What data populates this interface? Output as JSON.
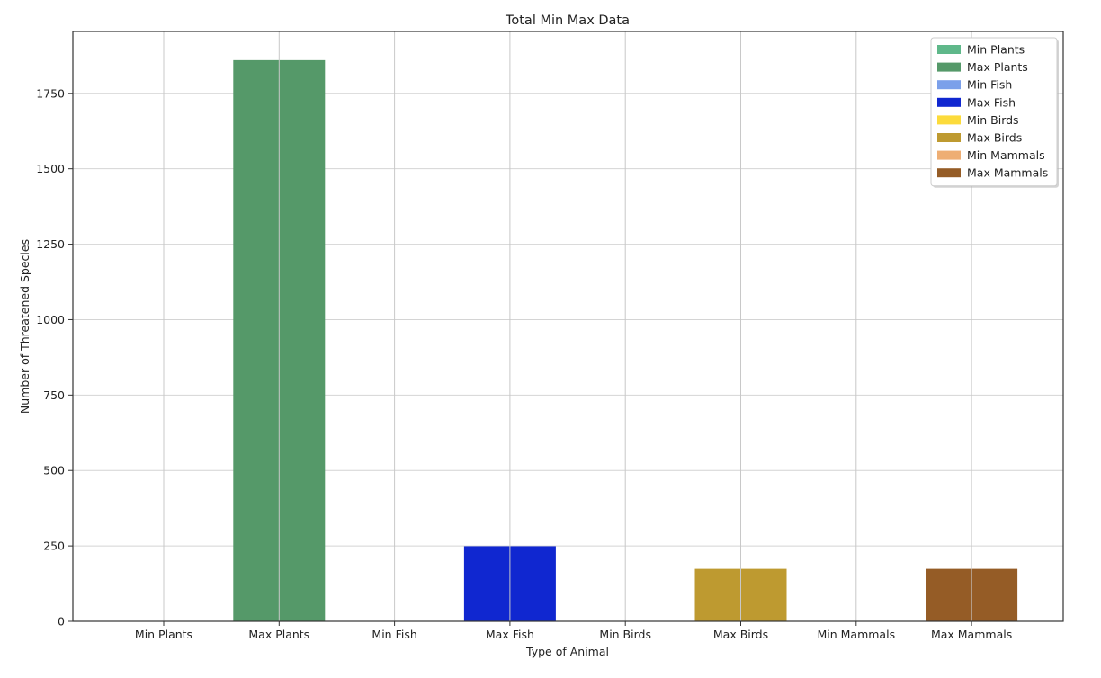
{
  "chart_data": {
    "type": "bar",
    "title": "Total Min Max Data",
    "xlabel": "Type of Animal",
    "ylabel": "Number of Threatened Species",
    "categories": [
      "Min Plants",
      "Max Plants",
      "Min Fish",
      "Max Fish",
      "Min Birds",
      "Max Birds",
      "Min Mammals",
      "Max Mammals"
    ],
    "values": [
      0,
      1860,
      0,
      249,
      0,
      174,
      0,
      174
    ],
    "colors": [
      "#5fb88a",
      "#559969",
      "#7ba0ea",
      "#1027d0",
      "#fcdb3b",
      "#be9a30",
      "#eeae74",
      "#955c26"
    ],
    "ylim": [
      0,
      1955
    ],
    "yticks": [
      0,
      250,
      500,
      750,
      1000,
      1250,
      1500,
      1750
    ],
    "grid": true,
    "legend": {
      "position": "top-right",
      "entries": [
        "Min Plants",
        "Max Plants",
        "Min Fish",
        "Max Fish",
        "Min Birds",
        "Max Birds",
        "Min Mammals",
        "Max Mammals"
      ]
    }
  }
}
